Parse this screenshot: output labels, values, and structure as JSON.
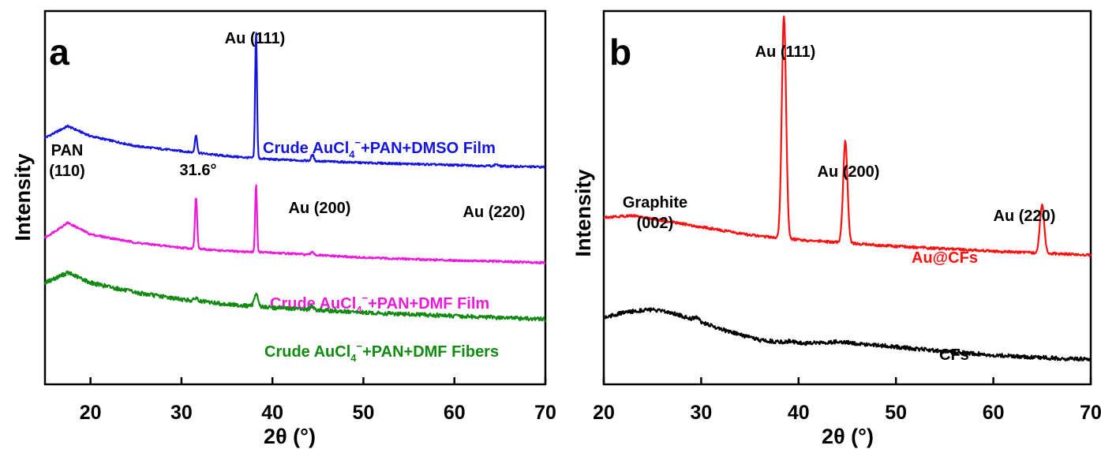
{
  "chart_data": [
    {
      "panel": "a",
      "type": "line",
      "xlabel": "2θ (°)",
      "ylabel": "Intensity",
      "xlim": [
        15,
        70
      ],
      "xticks": [
        "20",
        "30",
        "40",
        "50",
        "60",
        "70"
      ],
      "yticks_shown": false,
      "grid": false,
      "legend": "none (series labeled inline)",
      "annotations": [
        {
          "lines": [
            "Au (111)"
          ],
          "x": 38.2
        },
        {
          "lines": [
            "PAN",
            "(110)"
          ],
          "x": 17.5
        },
        {
          "lines": [
            "31.6°"
          ],
          "x": 31.6
        },
        {
          "lines": [
            "Au (200)"
          ],
          "x": 44.4
        },
        {
          "lines": [
            "Au (220)"
          ],
          "x": 64.6
        }
      ],
      "series": [
        {
          "label_parts": [
            "Crude AuCl",
            "4",
            "−",
            "+PAN+DMSO Film"
          ],
          "color": "#1515e0",
          "baseline": [
            [
              15,
              0.7
            ],
            [
              17.5,
              0.735
            ],
            [
              20,
              0.705
            ],
            [
              25,
              0.675
            ],
            [
              30,
              0.66
            ],
            [
              35,
              0.645
            ],
            [
              40,
              0.635
            ],
            [
              50,
              0.625
            ],
            [
              60,
              0.618
            ],
            [
              70,
              0.612
            ]
          ],
          "peaks": [
            {
              "x": 31.6,
              "h": 0.055,
              "w": 0.12
            },
            {
              "x": 38.2,
              "h": 0.385,
              "w": 0.1
            },
            {
              "x": 44.4,
              "h": 0.018,
              "w": 0.15
            },
            {
              "x": 64.6,
              "h": 0.006,
              "w": 0.15
            }
          ],
          "noise": 0.003
        },
        {
          "label_parts": [
            "Crude AuCl",
            "4",
            "−",
            "+PAN+DMF Film"
          ],
          "color": "#ee18dd",
          "baseline": [
            [
              15,
              0.4
            ],
            [
              17.5,
              0.445
            ],
            [
              20,
              0.41
            ],
            [
              25,
              0.385
            ],
            [
              30,
              0.37
            ],
            [
              35,
              0.36
            ],
            [
              40,
              0.355
            ],
            [
              50,
              0.34
            ],
            [
              60,
              0.332
            ],
            [
              70,
              0.325
            ]
          ],
          "peaks": [
            {
              "x": 31.6,
              "h": 0.155,
              "w": 0.12
            },
            {
              "x": 38.2,
              "h": 0.205,
              "w": 0.1
            },
            {
              "x": 44.4,
              "h": 0.01,
              "w": 0.15
            }
          ],
          "noise": 0.003
        },
        {
          "label_parts": [
            "Crude AuCl",
            "4",
            "−",
            "+PAN+DMF Fibers"
          ],
          "color": "#108a10",
          "baseline": [
            [
              15,
              0.265
            ],
            [
              17.5,
              0.295
            ],
            [
              20,
              0.265
            ],
            [
              25,
              0.235
            ],
            [
              30,
              0.215
            ],
            [
              35,
              0.2
            ],
            [
              40,
              0.19
            ],
            [
              50,
              0.175
            ],
            [
              60,
              0.165
            ],
            [
              70,
              0.155
            ]
          ],
          "peaks": [
            {
              "x": 31.6,
              "h": 0.01,
              "w": 0.15
            },
            {
              "x": 38.2,
              "h": 0.04,
              "w": 0.2
            },
            {
              "x": 44.4,
              "h": 0.012,
              "w": 0.2
            }
          ],
          "noise": 0.006
        }
      ]
    },
    {
      "panel": "b",
      "type": "line",
      "xlabel": "2θ (°)",
      "ylabel": "Intensity",
      "xlim": [
        20,
        70
      ],
      "xticks": [
        "20",
        "30",
        "40",
        "50",
        "60",
        "70"
      ],
      "yticks_shown": false,
      "grid": false,
      "legend": "none (series labeled inline)",
      "annotations": [
        {
          "lines": [
            "Au (111)"
          ],
          "x": 38.5
        },
        {
          "lines": [
            "Au (200)"
          ],
          "x": 44.8
        },
        {
          "lines": [
            "Graphite",
            "(002)"
          ],
          "x": 25
        },
        {
          "lines": [
            "Au (220)"
          ],
          "x": 65.0
        }
      ],
      "series": [
        {
          "label_parts": [
            "Au@CFs"
          ],
          "color": "#ff1010",
          "baseline": [
            [
              20,
              0.475
            ],
            [
              23,
              0.48
            ],
            [
              26,
              0.465
            ],
            [
              30,
              0.445
            ],
            [
              35,
              0.42
            ],
            [
              40,
              0.405
            ],
            [
              50,
              0.385
            ],
            [
              60,
              0.37
            ],
            [
              70,
              0.358
            ]
          ],
          "peaks": [
            {
              "x": 38.5,
              "h": 0.69,
              "w": 0.22
            },
            {
              "x": 44.8,
              "h": 0.315,
              "w": 0.22
            },
            {
              "x": 65.0,
              "h": 0.15,
              "w": 0.22
            }
          ],
          "noise": 0.004
        },
        {
          "label_parts": [
            "CFs"
          ],
          "color": "#000000",
          "baseline": [
            [
              20,
              0.165
            ],
            [
              22,
              0.18
            ],
            [
              24.5,
              0.19
            ],
            [
              27,
              0.18
            ],
            [
              30,
              0.15
            ],
            [
              33,
              0.12
            ],
            [
              36,
              0.095
            ],
            [
              40,
              0.085
            ],
            [
              44,
              0.09
            ],
            [
              48,
              0.08
            ],
            [
              55,
              0.06
            ],
            [
              62,
              0.045
            ],
            [
              70,
              0.035
            ]
          ],
          "peaks": [
            {
              "x": 29.5,
              "h": 0.01,
              "w": 0.3
            },
            {
              "x": 39.2,
              "h": 0.006,
              "w": 0.3
            }
          ],
          "noise": 0.006
        }
      ]
    }
  ]
}
